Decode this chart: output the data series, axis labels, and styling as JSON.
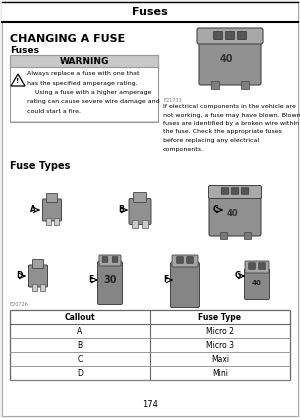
{
  "page_title": "Fuses",
  "section_title": "CHANGING A FUSE",
  "subsection_title": "Fuses",
  "warning_title": "WARNING",
  "warning_line1": "Always replace a fuse with one that",
  "warning_line2": "has the specified amperage rating.",
  "warning_line3": "    Using a fuse with a higher amperage",
  "warning_line4": "rating can cause severe wire damage and",
  "warning_line5": "could start a fire.",
  "right_caption": "E21731",
  "right_text_lines": [
    "If electrical components in the vehicle are",
    "not working, a fuse may have blown. Blown",
    "fuses are identified by a broken wire within",
    "the fuse. Check the appropriate fuses",
    "before replacing any electrical",
    "components."
  ],
  "fuse_types_title": "Fuse Types",
  "image_caption": "E20726",
  "table_headers": [
    "Callout",
    "Fuse Type"
  ],
  "table_rows": [
    [
      "A",
      "Micro 2"
    ],
    [
      "B",
      "Micro 3"
    ],
    [
      "C",
      "Maxi"
    ],
    [
      "D",
      "Mini"
    ]
  ],
  "page_number": "174",
  "bg_color": "#f2f2f2",
  "content_bg": "#ffffff",
  "header_bg": "#ffffff",
  "warning_header_bg": "#c8c8c8",
  "fuse_color": "#888888",
  "fuse_dark": "#555555",
  "fuse_light": "#aaaaaa"
}
